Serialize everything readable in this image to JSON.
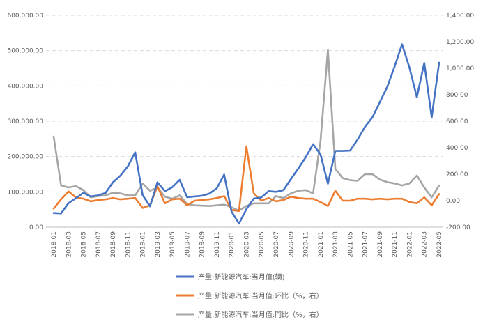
{
  "chart_data": {
    "type": "line",
    "title": "",
    "xlabel": "",
    "ylabel": "",
    "grid": true,
    "legend_position": "bottom",
    "y_left": {
      "min": 0,
      "max": 600000,
      "step": 100000,
      "tick_labels": [
        "0.00",
        "100,000.00",
        "200,000.00",
        "300,000.00",
        "400,000.00",
        "500,000.00",
        "600,000.00"
      ]
    },
    "y_right": {
      "min": -200,
      "max": 1400,
      "step": 200,
      "tick_labels": [
        "-200.00",
        "0.00",
        "200.00",
        "400.00",
        "600.00",
        "800.00",
        "1,000.00",
        "1,200.00",
        "1,400.00"
      ]
    },
    "x": [
      "2018-01",
      "2018-02",
      "2018-03",
      "2018-04",
      "2018-05",
      "2018-06",
      "2018-07",
      "2018-08",
      "2018-09",
      "2018-10",
      "2018-11",
      "2018-12",
      "2019-01",
      "2019-02",
      "2019-03",
      "2019-04",
      "2019-05",
      "2019-06",
      "2019-07",
      "2019-08",
      "2019-09",
      "2019-10",
      "2019-11",
      "2019-12",
      "2020-01",
      "2020-02",
      "2020-03",
      "2020-04",
      "2020-05",
      "2020-06",
      "2020-07",
      "2020-08",
      "2020-09",
      "2020-10",
      "2020-11",
      "2020-12",
      "2021-01",
      "2021-02",
      "2021-03",
      "2021-04",
      "2021-05",
      "2021-06",
      "2021-07",
      "2021-08",
      "2021-09",
      "2021-10",
      "2021-11",
      "2021-12",
      "2022-01",
      "2022-02",
      "2022-03",
      "2022-04",
      "2022-05"
    ],
    "x_tick_labels": [
      "2018-01",
      "2018-03",
      "2018-05",
      "2018-07",
      "2018-09",
      "2018-11",
      "2019-01",
      "2019-03",
      "2019-05",
      "2019-07",
      "2019-09",
      "2019-11",
      "2020-01",
      "2020-03",
      "2020-05",
      "2020-07",
      "2020-09",
      "2020-11",
      "2021-01",
      "2021-03",
      "2021-05",
      "2021-07",
      "2021-09",
      "2021-11",
      "2022-01",
      "2022-03",
      "2022-05"
    ],
    "series": [
      {
        "name": "产量:新能源汽车:当月值(辆)",
        "axis": "left",
        "color": "#4472C4",
        "values": [
          40000,
          39000,
          68000,
          82000,
          97000,
          87000,
          90000,
          97000,
          127000,
          146000,
          172000,
          212000,
          91000,
          59000,
          127000,
          102000,
          113000,
          134000,
          85000,
          87000,
          89000,
          95000,
          110000,
          149000,
          44000,
          10000,
          51000,
          81000,
          84000,
          102000,
          100000,
          105000,
          136000,
          166000,
          198000,
          235000,
          206000,
          123000,
          216000,
          216000,
          217000,
          248000,
          284000,
          311000,
          354000,
          397000,
          455000,
          518000,
          452000,
          368000,
          465000,
          311000,
          466000
        ]
      },
      {
        "name": "产量:新能源汽车:当月值:环比（%，右）",
        "axis": "right",
        "color": "#ED7D31",
        "values": [
          -60,
          10,
          70,
          25,
          15,
          -5,
          5,
          10,
          20,
          10,
          15,
          20,
          -55,
          -35,
          110,
          -20,
          10,
          15,
          -35,
          0,
          5,
          10,
          20,
          35,
          -70,
          -78,
          410,
          55,
          0,
          20,
          -5,
          5,
          30,
          20,
          15,
          15,
          -10,
          -40,
          75,
          0,
          0,
          15,
          15,
          10,
          15,
          10,
          15,
          15,
          -10,
          -20,
          25,
          -35,
          50
        ]
      },
      {
        "name": "产量:新能源汽车:当月值:同比（%，右）",
        "axis": "right",
        "color": "#A5A5A5",
        "values": [
          485,
          115,
          100,
          110,
          80,
          25,
          35,
          40,
          60,
          55,
          40,
          40,
          130,
          75,
          100,
          30,
          15,
          40,
          -25,
          -35,
          -38,
          -40,
          -35,
          -30,
          -50,
          -75,
          -40,
          -20,
          -20,
          -20,
          35,
          20,
          55,
          75,
          80,
          55,
          450,
          1140,
          240,
          170,
          155,
          150,
          200,
          200,
          160,
          140,
          130,
          115,
          130,
          190,
          100,
          25,
          115
        ]
      }
    ]
  }
}
